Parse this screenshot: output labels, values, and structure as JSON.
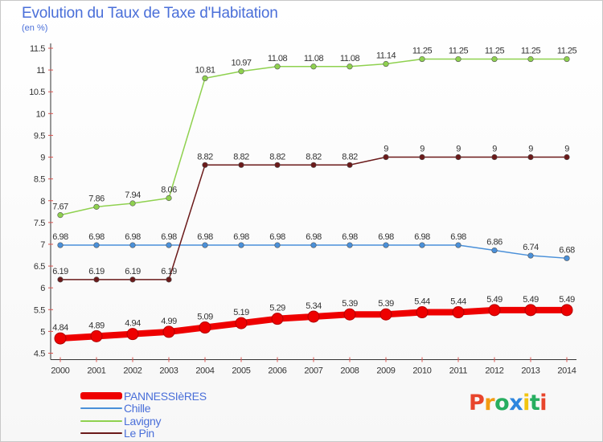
{
  "header": {
    "title": "Evolution du Taux de Taxe d'Habitation",
    "unit": "(en %)"
  },
  "logo": {
    "text": "Proxiti",
    "letters": [
      "P",
      "r",
      "o",
      "x",
      "i",
      "t",
      "i"
    ],
    "colors": [
      "#e8452c",
      "#f39c12",
      "#27ae60",
      "#2e86de",
      "#f1c40f",
      "#27ae60",
      "#e8452c"
    ]
  },
  "chart_data": {
    "type": "line",
    "title": "Evolution du Taux de Taxe d'Habitation",
    "ylabel": "(en %)",
    "xlabel": "",
    "x": [
      2000,
      2001,
      2002,
      2003,
      2004,
      2005,
      2006,
      2007,
      2008,
      2009,
      2010,
      2011,
      2012,
      2013,
      2014
    ],
    "ylim": [
      4.5,
      11.5
    ],
    "yticks": [
      4.5,
      5,
      5.5,
      6,
      6.5,
      7,
      7.5,
      8,
      8.5,
      9,
      9.5,
      10,
      10.5,
      11,
      11.5
    ],
    "grid": false,
    "legend_position": "bottom-left",
    "series": [
      {
        "name": "PANNESSIèRES",
        "color": "#ee0000",
        "emphasis": true,
        "values": [
          4.84,
          4.89,
          4.94,
          4.99,
          5.09,
          5.19,
          5.29,
          5.34,
          5.39,
          5.39,
          5.44,
          5.44,
          5.49,
          5.49,
          5.49
        ]
      },
      {
        "name": "Chille",
        "color": "#4a90d9",
        "emphasis": false,
        "values": [
          6.98,
          6.98,
          6.98,
          6.98,
          6.98,
          6.98,
          6.98,
          6.98,
          6.98,
          6.98,
          6.98,
          6.98,
          6.86,
          6.74,
          6.68
        ]
      },
      {
        "name": "Lavigny",
        "color": "#8fd14f",
        "emphasis": false,
        "values": [
          7.67,
          7.86,
          7.94,
          8.06,
          10.81,
          10.97,
          11.08,
          11.08,
          11.08,
          11.14,
          11.25,
          11.25,
          11.25,
          11.25,
          11.25
        ]
      },
      {
        "name": "Le Pin",
        "color": "#6b1a1a",
        "emphasis": false,
        "values": [
          6.19,
          6.19,
          6.19,
          6.19,
          8.82,
          8.82,
          8.82,
          8.82,
          8.82,
          9,
          9,
          9,
          9,
          9,
          9
        ]
      }
    ]
  }
}
